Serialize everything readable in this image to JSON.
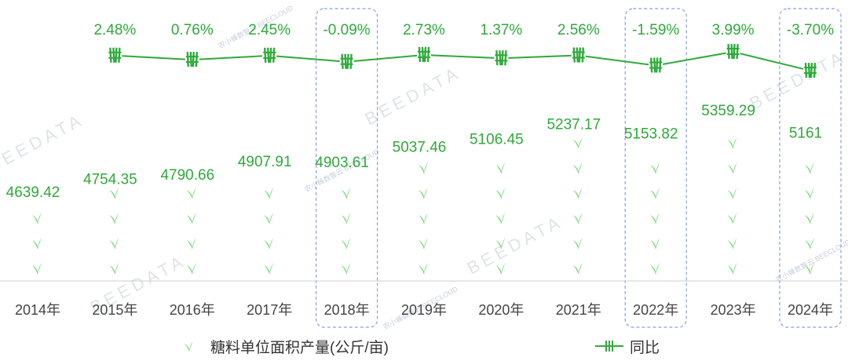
{
  "chart_data": {
    "type": "bar",
    "categories": [
      "2014年",
      "2015年",
      "2016年",
      "2017年",
      "2018年",
      "2019年",
      "2020年",
      "2021年",
      "2022年",
      "2023年",
      "2024年"
    ],
    "series": [
      {
        "name": "糖料单位面积产量(公斤/亩)",
        "kind": "pictorial-bar",
        "values": [
          4639.42,
          4754.35,
          4790.66,
          4907.91,
          4903.61,
          5037.46,
          5106.45,
          5237.17,
          5153.82,
          5359.29,
          5161
        ],
        "value_labels": [
          "4639.42",
          "4754.35",
          "4790.66",
          "4907.91",
          "4903.61",
          "5037.46",
          "5106.45",
          "5237.17",
          "5153.82",
          "5359.29",
          "5161"
        ]
      },
      {
        "name": "同比",
        "kind": "line",
        "values": [
          null,
          2.48,
          0.76,
          2.45,
          -0.09,
          2.73,
          1.37,
          2.56,
          -1.59,
          3.99,
          -3.7
        ],
        "value_labels": [
          "",
          "2.48%",
          "0.76%",
          "2.45%",
          "-0.09%",
          "2.73%",
          "1.37%",
          "2.56%",
          "-1.59%",
          "3.99%",
          "-3.70%"
        ]
      }
    ],
    "highlighted_categories": [
      "2018年",
      "2022年",
      "2024年"
    ],
    "legend_position": "bottom",
    "grid": false,
    "colors": {
      "bar": "#7dd87f",
      "line": "#2eaa3a",
      "label": "#2eaa3a",
      "highlight_border": "#8a9ee0"
    }
  },
  "watermarks": {
    "brand": "BEEDATA",
    "sub": "BEECLOUD",
    "cn": "农小蜂数智云"
  }
}
